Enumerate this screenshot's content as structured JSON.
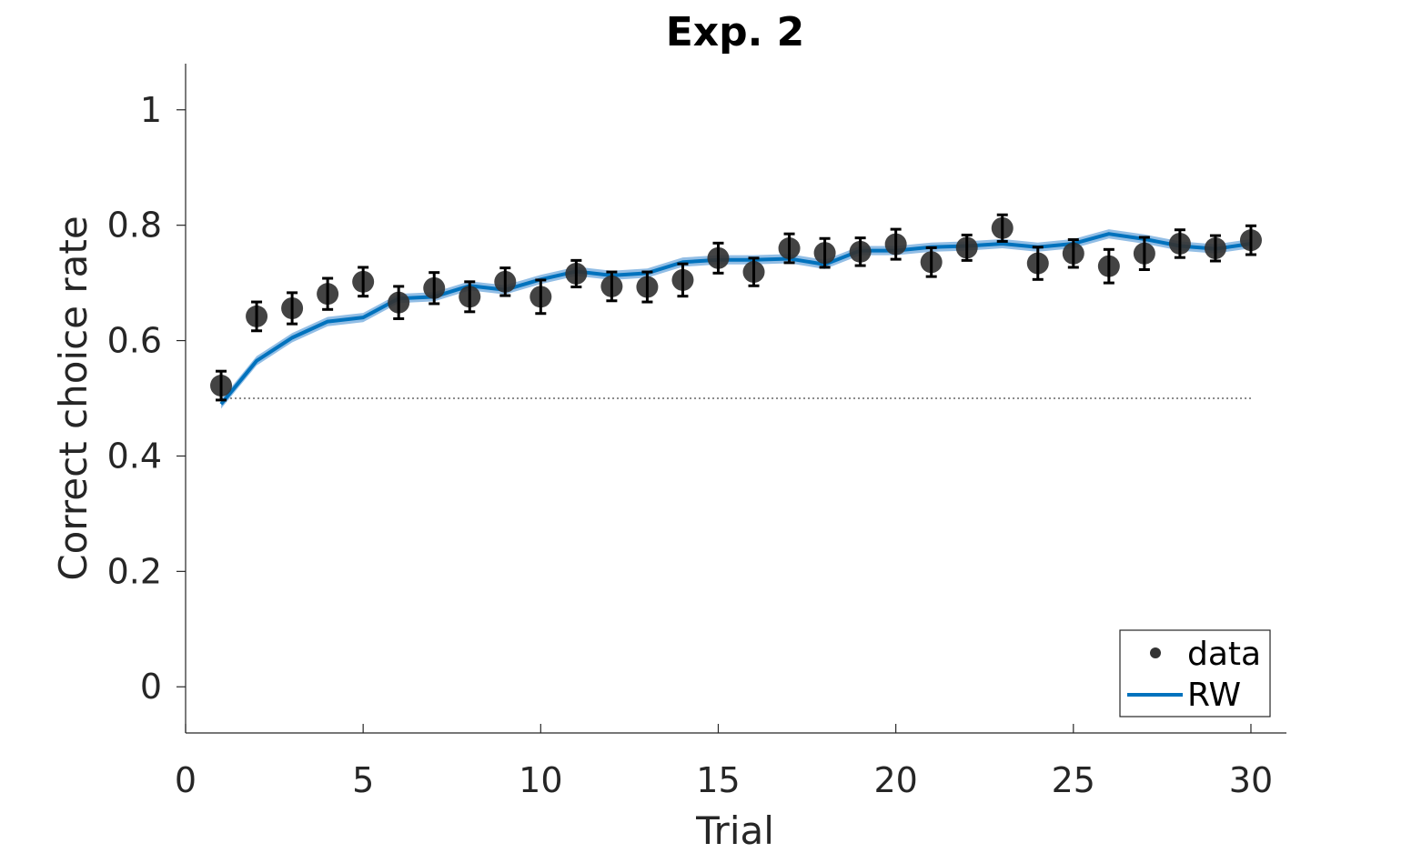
{
  "chart_data": {
    "type": "line",
    "title": "Exp. 2",
    "xlabel": "Trial",
    "ylabel": "Correct choice rate",
    "xlim": [
      0,
      31
    ],
    "ylim": [
      -0.08,
      1.08
    ],
    "xticks": [
      0,
      5,
      10,
      15,
      20,
      25,
      30
    ],
    "xtick_labels": [
      "0",
      "5",
      "10",
      "15",
      "20",
      "25",
      "30"
    ],
    "yticks": [
      0,
      0.2,
      0.4,
      0.6,
      0.8,
      1
    ],
    "ytick_labels": [
      "0",
      "0.2",
      "0.4",
      "0.6",
      "0.8",
      "1"
    ],
    "chance_level": 0.5,
    "grid": false,
    "legend_position": "bottom-right",
    "legend": [
      "data",
      "RW"
    ],
    "colors": {
      "data": "#333333",
      "rw": "#0072BD",
      "rw_band": "#6FA8DC"
    },
    "x": [
      1,
      2,
      3,
      4,
      5,
      6,
      7,
      8,
      9,
      10,
      11,
      12,
      13,
      14,
      15,
      16,
      17,
      18,
      19,
      20,
      21,
      22,
      23,
      24,
      25,
      26,
      27,
      28,
      29,
      30
    ],
    "series": [
      {
        "name": "data",
        "kind": "scatter-errorbar",
        "values": [
          0.522,
          0.642,
          0.656,
          0.681,
          0.702,
          0.666,
          0.691,
          0.676,
          0.702,
          0.676,
          0.716,
          0.694,
          0.693,
          0.705,
          0.743,
          0.719,
          0.76,
          0.752,
          0.754,
          0.767,
          0.736,
          0.761,
          0.795,
          0.734,
          0.751,
          0.729,
          0.751,
          0.768,
          0.76,
          0.774
        ],
        "errors": [
          0.025,
          0.025,
          0.027,
          0.027,
          0.025,
          0.028,
          0.027,
          0.026,
          0.024,
          0.029,
          0.023,
          0.025,
          0.026,
          0.028,
          0.026,
          0.024,
          0.025,
          0.025,
          0.024,
          0.026,
          0.025,
          0.022,
          0.023,
          0.028,
          0.024,
          0.029,
          0.028,
          0.024,
          0.022,
          0.025
        ]
      },
      {
        "name": "RW",
        "kind": "line",
        "values": [
          0.49,
          0.565,
          0.605,
          0.633,
          0.64,
          0.673,
          0.676,
          0.695,
          0.688,
          0.706,
          0.72,
          0.713,
          0.717,
          0.736,
          0.74,
          0.74,
          0.742,
          0.732,
          0.756,
          0.756,
          0.762,
          0.764,
          0.768,
          0.762,
          0.768,
          0.785,
          0.776,
          0.764,
          0.759,
          0.768
        ],
        "band": 0.008
      }
    ]
  }
}
